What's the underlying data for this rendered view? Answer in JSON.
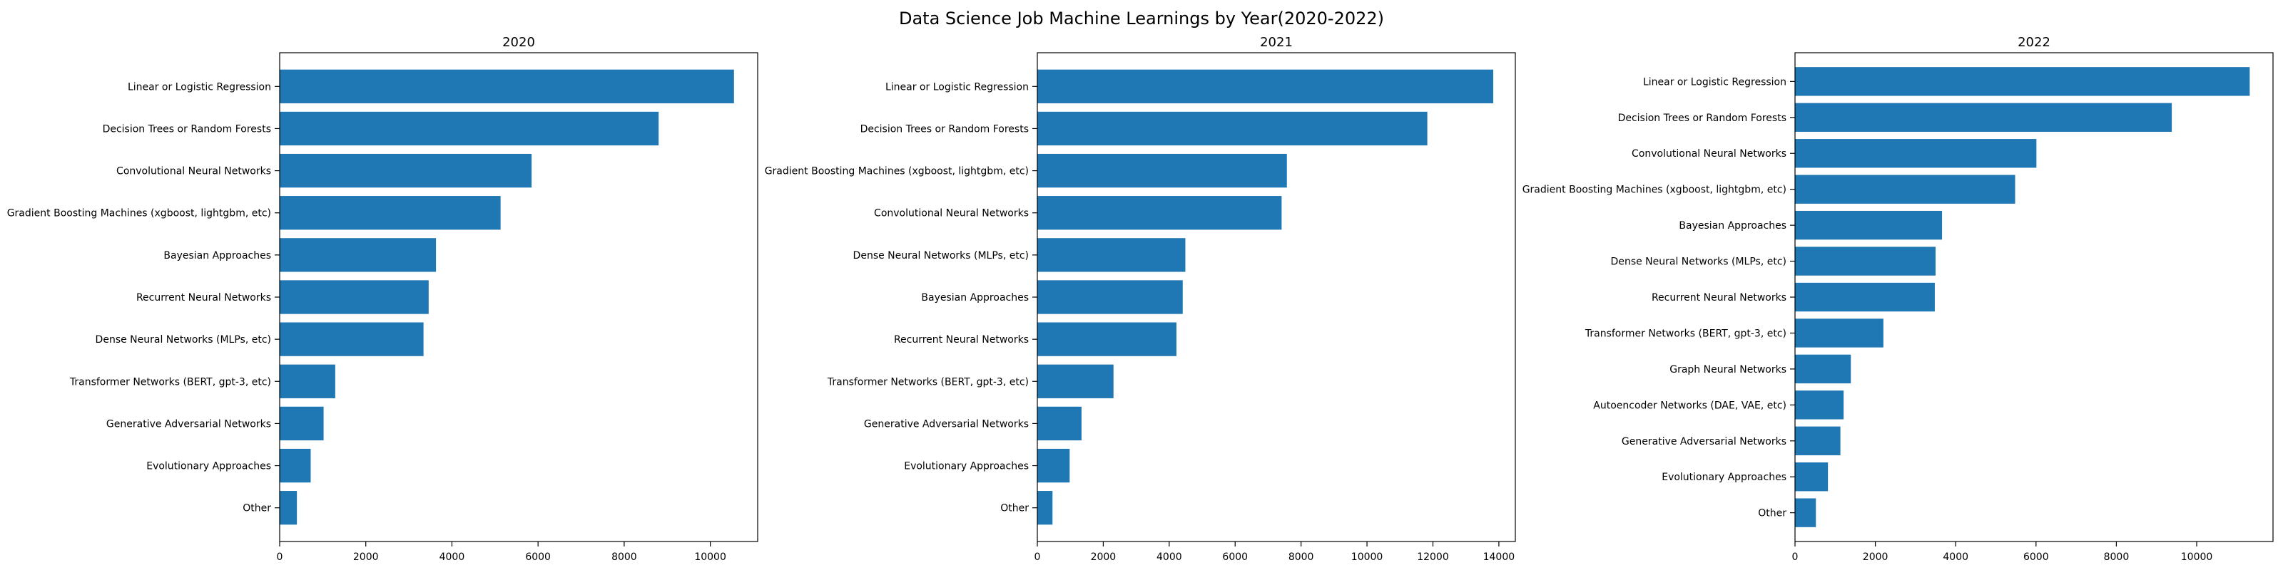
{
  "figure_title": "Data Science Job Machine Learnings by Year(2020-2022)",
  "colors": {
    "bar": "#1f77b4",
    "axis": "#000000",
    "background": "#ffffff"
  },
  "chart_data": [
    {
      "type": "bar",
      "orientation": "horizontal",
      "title": "2020",
      "xlabel": "",
      "ylabel": "",
      "xlim": [
        0,
        11100
      ],
      "xticks": [
        0,
        2000,
        4000,
        6000,
        8000,
        10000
      ],
      "grid": false,
      "categories": [
        "Linear or Logistic Regression",
        "Decision Trees or Random Forests",
        "Convolutional Neural Networks",
        "Gradient Boosting Machines (xgboost, lightgbm, etc)",
        "Bayesian Approaches",
        "Recurrent Neural Networks",
        "Dense Neural Networks (MLPs, etc)",
        "Transformer Networks (BERT, gpt-3, etc)",
        "Generative Adversarial Networks",
        "Evolutionary Approaches",
        "Other"
      ],
      "values": [
        10550,
        8800,
        5850,
        5130,
        3630,
        3460,
        3340,
        1290,
        1020,
        720,
        400
      ]
    },
    {
      "type": "bar",
      "orientation": "horizontal",
      "title": "2021",
      "xlabel": "",
      "ylabel": "",
      "xlim": [
        0,
        14500
      ],
      "xticks": [
        0,
        2000,
        4000,
        6000,
        8000,
        10000,
        12000,
        14000
      ],
      "grid": false,
      "categories": [
        "Linear or Logistic Regression",
        "Decision Trees or Random Forests",
        "Gradient Boosting Machines (xgboost, lightgbm, etc)",
        "Convolutional Neural Networks",
        "Dense Neural Networks (MLPs, etc)",
        "Bayesian Approaches",
        "Recurrent Neural Networks",
        "Transformer Networks (BERT, gpt-3, etc)",
        "Generative Adversarial Networks",
        "Evolutionary Approaches",
        "Other"
      ],
      "values": [
        13830,
        11830,
        7570,
        7410,
        4490,
        4410,
        4220,
        2310,
        1340,
        980,
        460
      ]
    },
    {
      "type": "bar",
      "orientation": "horizontal",
      "title": "2022",
      "xlabel": "",
      "ylabel": "",
      "xlim": [
        0,
        11900
      ],
      "xticks": [
        0,
        2000,
        4000,
        6000,
        8000,
        10000
      ],
      "grid": false,
      "categories": [
        "Linear or Logistic Regression",
        "Decision Trees or Random Forests",
        "Convolutional Neural Networks",
        "Gradient Boosting Machines (xgboost, lightgbm, etc)",
        "Bayesian Approaches",
        "Dense Neural Networks (MLPs, etc)",
        "Recurrent Neural Networks",
        "Transformer Networks (BERT, gpt-3, etc)",
        "Graph Neural Networks",
        "Autoencoder Networks (DAE, VAE, etc)",
        "Generative Adversarial Networks",
        "Evolutionary Approaches",
        "Other"
      ],
      "values": [
        11320,
        9380,
        6010,
        5480,
        3660,
        3500,
        3480,
        2200,
        1390,
        1210,
        1130,
        820,
        520
      ]
    }
  ]
}
